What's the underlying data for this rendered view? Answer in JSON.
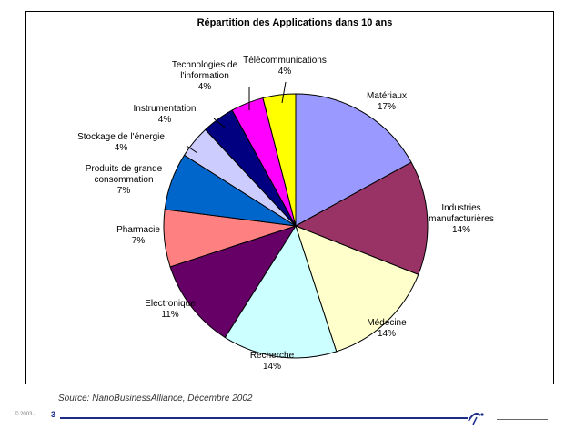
{
  "chart_data": {
    "type": "pie",
    "title": "Répartition des Applications dans 10 ans",
    "slices": [
      {
        "label": [
          "Matériaux"
        ],
        "value": 17,
        "pct": "17%",
        "color": "#9999ff"
      },
      {
        "label": [
          "Industries",
          "manufacturières"
        ],
        "value": 14,
        "pct": "14%",
        "color": "#993366"
      },
      {
        "label": [
          "Médecine"
        ],
        "value": 14,
        "pct": "14%",
        "color": "#ffffcc"
      },
      {
        "label": [
          "Recherche"
        ],
        "value": 14,
        "pct": "14%",
        "color": "#ccffff"
      },
      {
        "label": [
          "Electronique"
        ],
        "value": 11,
        "pct": "11%",
        "color": "#660066"
      },
      {
        "label": [
          "Pharmacie"
        ],
        "value": 7,
        "pct": "7%",
        "color": "#ff8080"
      },
      {
        "label": [
          "Produits de grande",
          "consommation"
        ],
        "value": 7,
        "pct": "7%",
        "color": "#0066cc"
      },
      {
        "label": [
          "Stockage de l'énergie"
        ],
        "value": 4,
        "pct": "4%",
        "color": "#ccccff"
      },
      {
        "label": [
          "Instrumentation"
        ],
        "value": 4,
        "pct": "4%",
        "color": "#000080"
      },
      {
        "label": [
          "Technologies de",
          "l'information"
        ],
        "value": 4,
        "pct": "4%",
        "color": "#ff00ff"
      },
      {
        "label": [
          "Télécommunications"
        ],
        "value": 4,
        "pct": "4%",
        "color": "#ffff00"
      }
    ]
  },
  "source": "Source:  NanoBusinessAlliance, Décembre 2002",
  "footer": {
    "left_text": "© 2003 -",
    "page_number": "3"
  }
}
